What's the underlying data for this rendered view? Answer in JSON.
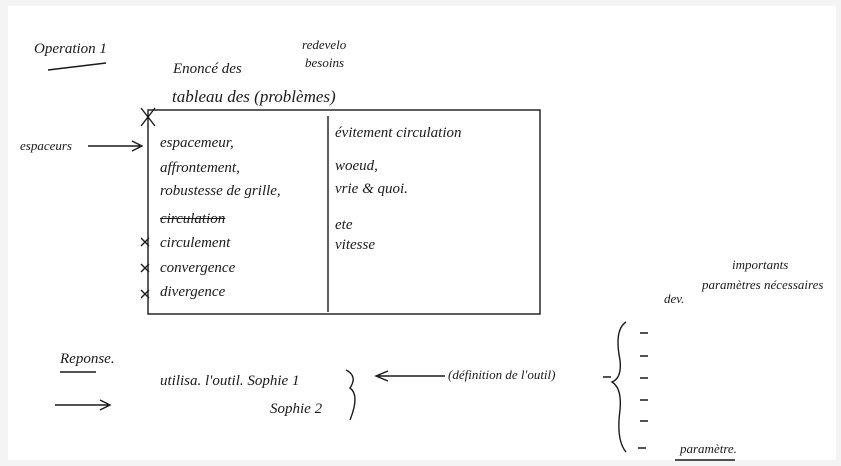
{
  "heading": "Operation 1",
  "statement": {
    "line1": "Enoncé des",
    "insert1": "redevelo",
    "insert2": "besoins",
    "line2": "tableau des (problèmes)"
  },
  "side_label": "espaceurs",
  "table": {
    "left": [
      "espacemeur,",
      "affrontement,",
      "robustesse de grille,",
      "circulation",
      "circulement",
      "convergence",
      "divergence"
    ],
    "right": [
      "évitement circulation",
      "woeud,",
      "vrie & quoi.",
      "ete",
      "vitesse"
    ]
  },
  "response": {
    "label": "Reponse.",
    "tool_line": "utilisa. l'outil. Sophie 1",
    "tool_line2": "Sophie 2",
    "definition": "(définition de l'outil)"
  },
  "notes": {
    "top1": "importants",
    "top2": "paramètres nécessaires",
    "top3": "dev.",
    "bottom": "paramètre."
  }
}
